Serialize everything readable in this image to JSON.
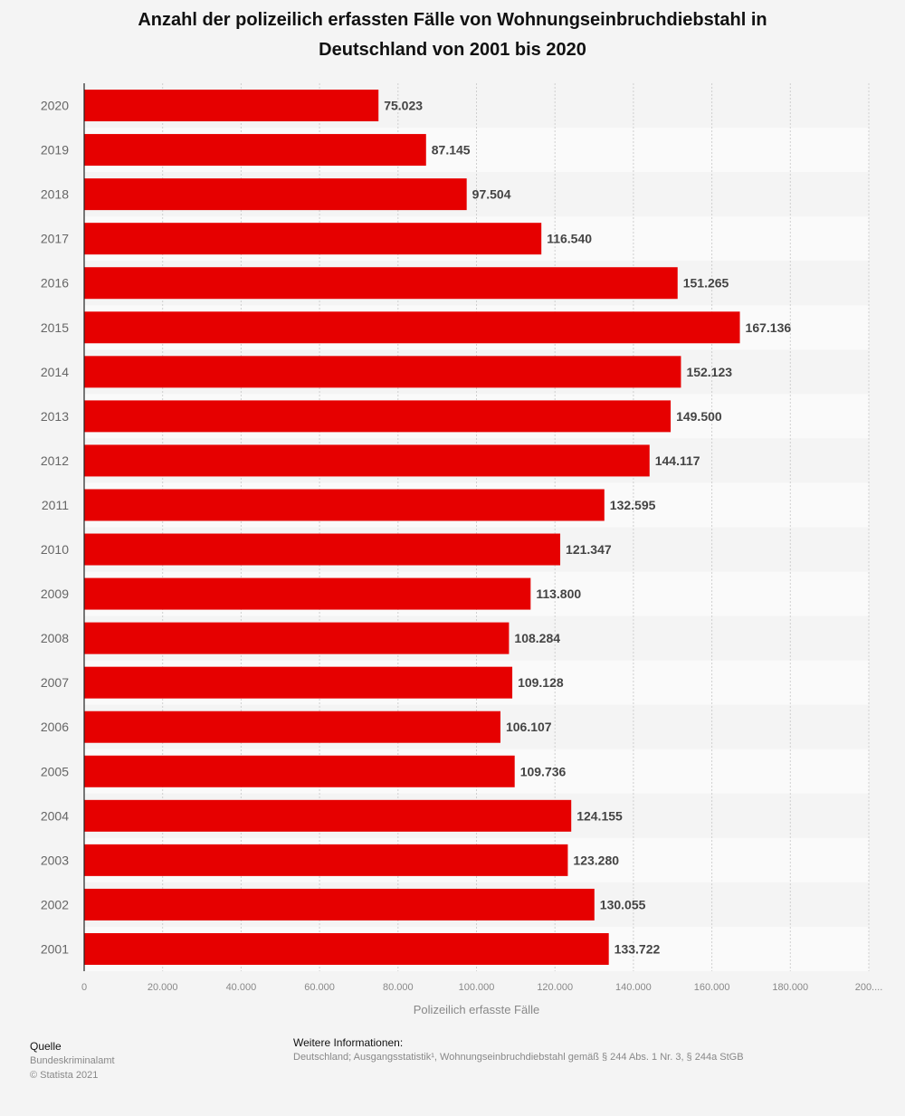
{
  "chart_data": {
    "type": "bar",
    "orientation": "horizontal",
    "title": "Anzahl der polizeilich erfassten Fälle von Wohnungseinbruchdiebstahl in Deutschland von 2001 bis 2020",
    "title_lines": [
      "Anzahl der polizeilich erfassten Fälle von Wohnungseinbruchdiebstahl in",
      "Deutschland von 2001 bis 2020"
    ],
    "categories": [
      "2020",
      "2019",
      "2018",
      "2017",
      "2016",
      "2015",
      "2014",
      "2013",
      "2012",
      "2011",
      "2010",
      "2009",
      "2008",
      "2007",
      "2006",
      "2005",
      "2004",
      "2003",
      "2002",
      "2001"
    ],
    "values": [
      75023,
      87145,
      97504,
      116540,
      151265,
      167136,
      152123,
      149500,
      144117,
      132595,
      121347,
      113800,
      108284,
      109128,
      106107,
      109736,
      124155,
      123280,
      130055,
      133722
    ],
    "value_labels": [
      "75.023",
      "87.145",
      "97.504",
      "116.540",
      "151.265",
      "167.136",
      "152.123",
      "149.500",
      "144.117",
      "132.595",
      "121.347",
      "113.800",
      "108.284",
      "109.128",
      "106.107",
      "109.736",
      "124.155",
      "123.280",
      "130.055",
      "133.722"
    ],
    "xlabel": "Polizeilich erfasste Fälle",
    "ylabel": "",
    "xlim": [
      0,
      200000
    ],
    "x_ticks": [
      0,
      20000,
      40000,
      60000,
      80000,
      100000,
      120000,
      140000,
      160000,
      180000,
      200000
    ],
    "x_tick_labels": [
      "0",
      "20.000",
      "40.000",
      "60.000",
      "80.000",
      "100.000",
      "120.000",
      "140.000",
      "160.000",
      "180.000",
      "200...."
    ],
    "grid": true,
    "legend": "none",
    "bar_color": "#e60000"
  },
  "footer": {
    "source_heading": "Quelle",
    "source": "Bundeskriminalamt",
    "copyright": "© Statista 2021",
    "info_heading": "Weitere Informationen:",
    "info": "Deutschland; Ausgangsstatistik¹, Wohnungseinbruchdiebstahl gemäß § 244 Abs. 1 Nr. 3, § 244a StGB"
  }
}
